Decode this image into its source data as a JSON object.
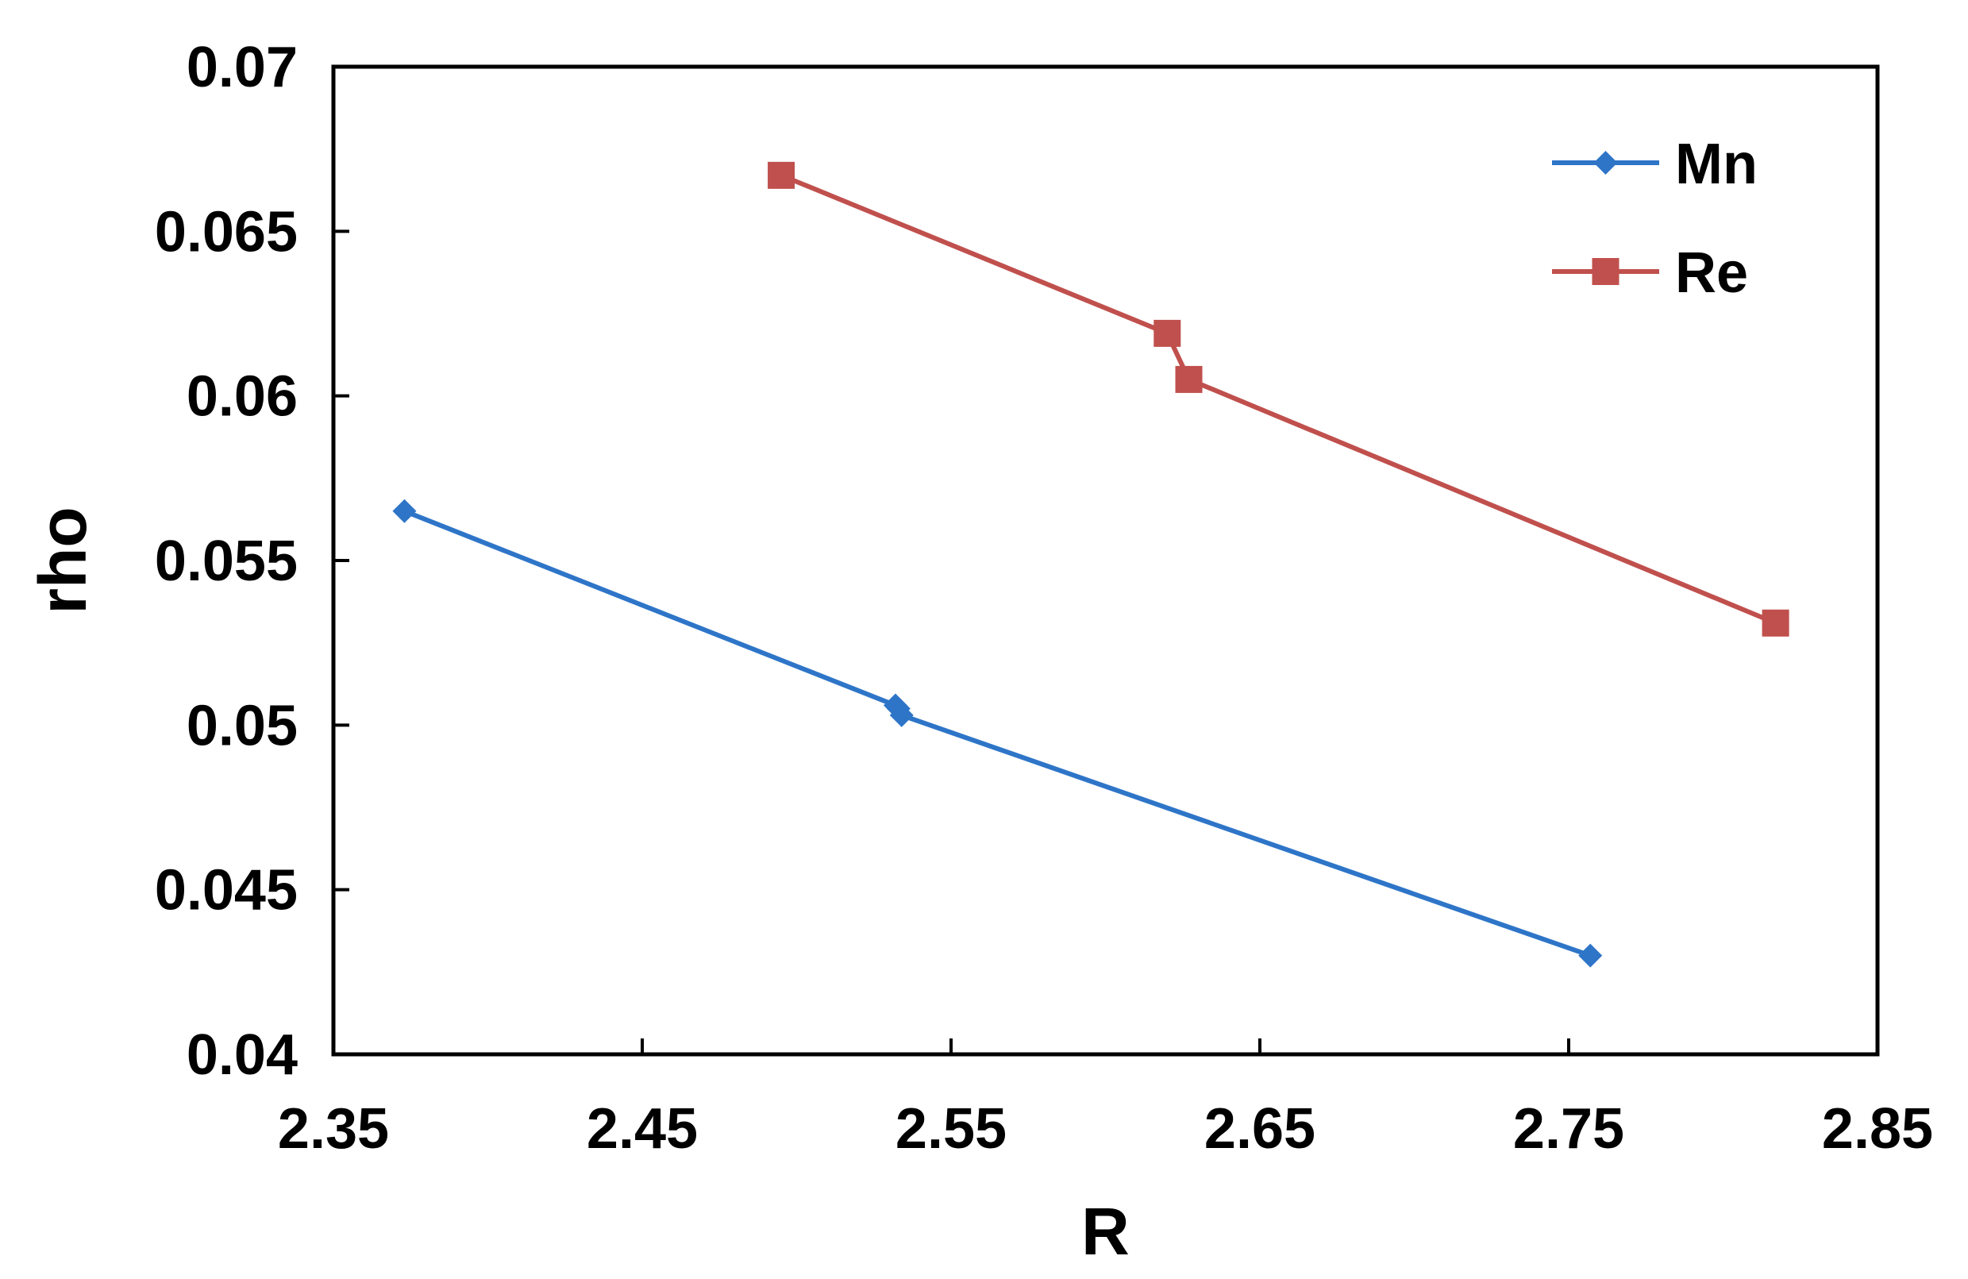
{
  "chart_data": {
    "type": "line",
    "title": "",
    "xlabel": "R",
    "ylabel": "rho",
    "xlim": [
      2.35,
      2.85
    ],
    "ylim": [
      0.04,
      0.07
    ],
    "xticks": [
      "2.35",
      "2.45",
      "2.55",
      "2.65",
      "2.75",
      "2.85"
    ],
    "yticks": [
      "0.04",
      "0.045",
      "0.05",
      "0.055",
      "0.06",
      "0.065",
      "0.07"
    ],
    "grid": false,
    "legend_position": "top-right",
    "series": [
      {
        "name": "Mn",
        "color": "#2E75C8",
        "marker": "diamond",
        "x": [
          2.373,
          2.532,
          2.533,
          2.534,
          2.757
        ],
        "y": [
          0.0565,
          0.0506,
          0.0505,
          0.0503,
          0.043
        ]
      },
      {
        "name": "Re",
        "color": "#C0504D",
        "marker": "square",
        "x": [
          2.495,
          2.62,
          2.627,
          2.817
        ],
        "y": [
          0.0667,
          0.0619,
          0.0605,
          0.0531
        ]
      }
    ]
  }
}
